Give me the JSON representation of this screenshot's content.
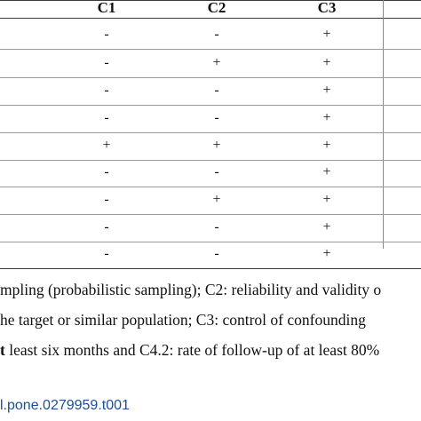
{
  "table": {
    "columns": [
      "C1",
      "C2",
      "C3"
    ],
    "rows": [
      [
        "-",
        "-",
        "+"
      ],
      [
        "-",
        "+",
        "+"
      ],
      [
        "-",
        "-",
        "+"
      ],
      [
        "-",
        "-",
        "+"
      ],
      [
        "+",
        "+",
        "+"
      ],
      [
        "-",
        "-",
        "+"
      ],
      [
        "-",
        "+",
        "+"
      ],
      [
        "-",
        "-",
        "+"
      ],
      [
        "-",
        "-",
        "+"
      ]
    ]
  },
  "footnote": {
    "line1": "mpling (probabilistic sampling); C2: reliability and validity o",
    "line2": "he target or similar population; C3: control of confounding",
    "line3_bold": "t",
    "line3_rest": " least six months and C4.2: rate of follow-up of at least 80%"
  },
  "doi": "l.pone.0279959.t001"
}
